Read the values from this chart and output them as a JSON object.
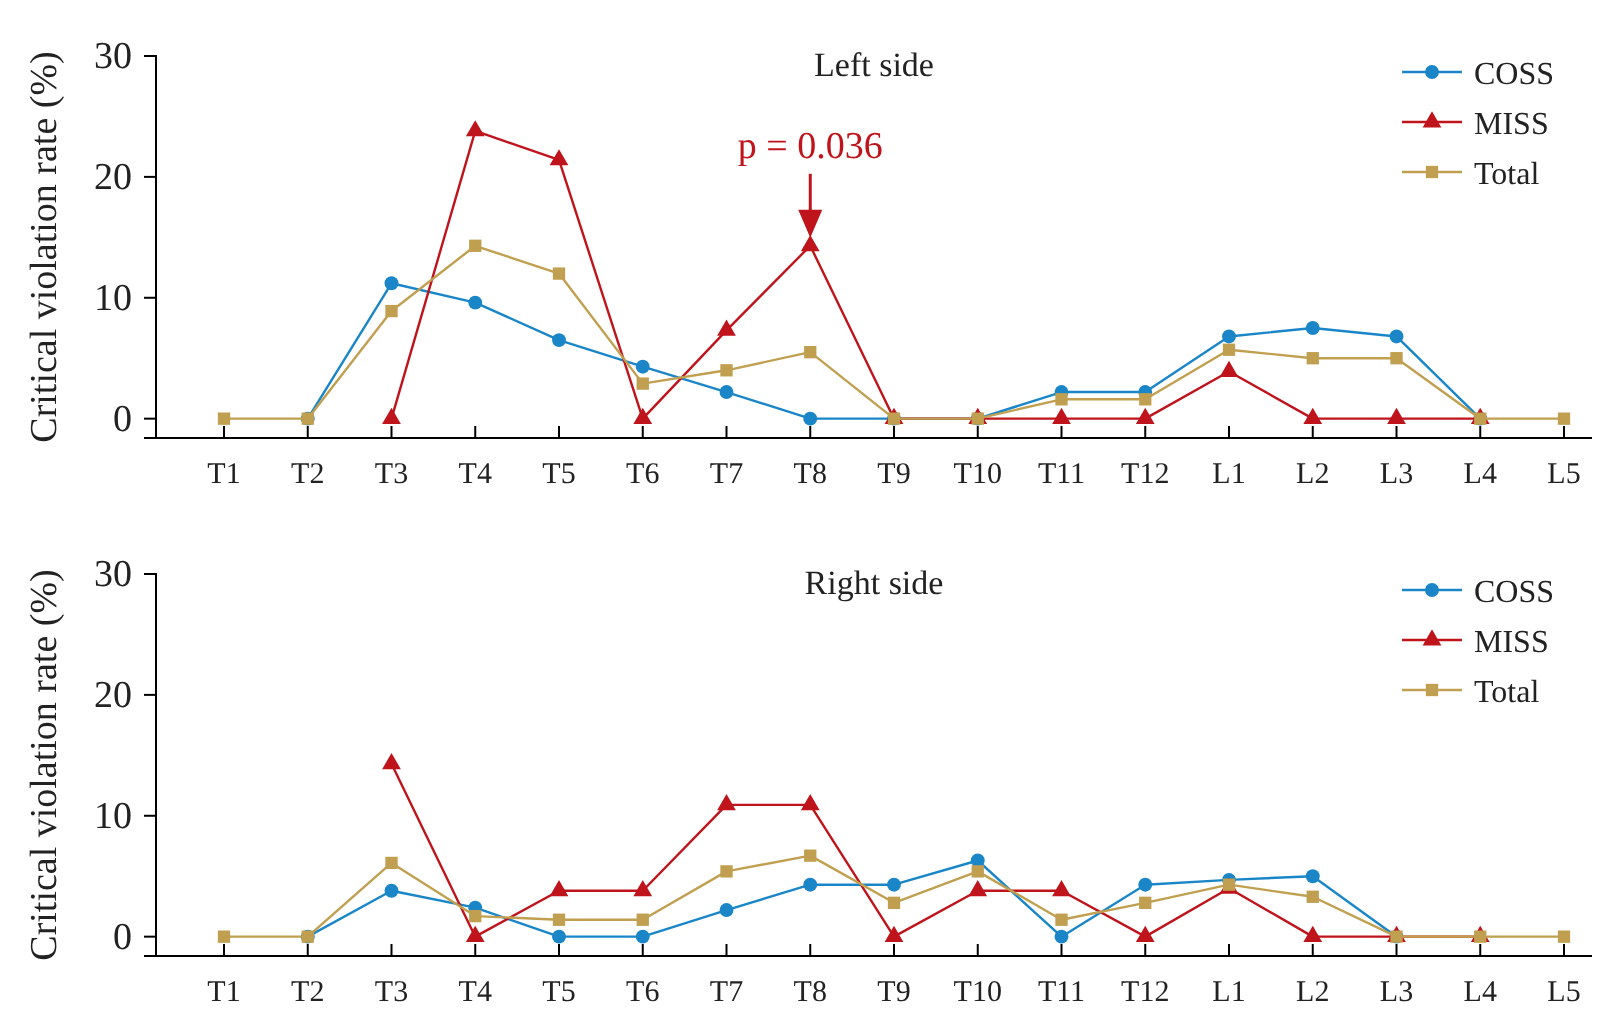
{
  "chart_data": [
    {
      "type": "line",
      "title": "Left side",
      "ylabel": "Critical violation rate (%)",
      "categories": [
        "T1",
        "T2",
        "T3",
        "T4",
        "T5",
        "T6",
        "T7",
        "T8",
        "T9",
        "T10",
        "T11",
        "T12",
        "L1",
        "L2",
        "L3",
        "L4",
        "L5"
      ],
      "ylim": [
        -1.6,
        30
      ],
      "yticks": [
        0,
        10,
        20,
        30
      ],
      "legend": "top right",
      "grid": false,
      "series": [
        {
          "name": "COSS",
          "color": "#1a86c8",
          "marker": "circle",
          "values": [
            null,
            0,
            11.2,
            9.6,
            6.5,
            4.3,
            2.2,
            0,
            0,
            0,
            2.2,
            2.2,
            6.8,
            7.5,
            6.8,
            0,
            null
          ]
        },
        {
          "name": "MISS",
          "color": "#c0141c",
          "marker": "triangle",
          "values": [
            null,
            null,
            0,
            23.8,
            21.4,
            0,
            7.3,
            14.3,
            0,
            0,
            0,
            0,
            3.9,
            0,
            0,
            0,
            null
          ]
        },
        {
          "name": "Total",
          "color": "#c0a050",
          "marker": "square",
          "values": [
            0,
            0,
            8.9,
            14.3,
            12.0,
            2.9,
            4.0,
            5.5,
            0,
            0,
            1.6,
            1.6,
            5.7,
            5.0,
            5.0,
            0,
            0
          ]
        }
      ],
      "annotations": [
        {
          "text": "p = 0.036",
          "x": "T8",
          "y": 14.3
        }
      ]
    },
    {
      "type": "line",
      "title": "Right side",
      "ylabel": "Critical violation rate (%)",
      "categories": [
        "T1",
        "T2",
        "T3",
        "T4",
        "T5",
        "T6",
        "T7",
        "T8",
        "T9",
        "T10",
        "T11",
        "T12",
        "L1",
        "L2",
        "L3",
        "L4",
        "L5"
      ],
      "ylim": [
        -1.6,
        30
      ],
      "yticks": [
        0,
        10,
        20,
        30
      ],
      "legend": "top right",
      "grid": false,
      "series": [
        {
          "name": "COSS",
          "color": "#1a86c8",
          "marker": "circle",
          "values": [
            null,
            0,
            3.8,
            2.4,
            0,
            0,
            2.2,
            4.3,
            4.3,
            6.3,
            0,
            4.3,
            4.7,
            5.0,
            0,
            null,
            null
          ]
        },
        {
          "name": "MISS",
          "color": "#c0141c",
          "marker": "triangle",
          "values": [
            null,
            null,
            14.3,
            0,
            3.8,
            3.8,
            10.9,
            10.9,
            0,
            3.8,
            3.8,
            0,
            4.0,
            0,
            0,
            0,
            null
          ]
        },
        {
          "name": "Total",
          "color": "#c0a050",
          "marker": "square",
          "values": [
            0,
            0,
            6.1,
            1.7,
            1.4,
            1.4,
            5.4,
            6.7,
            2.8,
            5.4,
            1.4,
            2.8,
            4.3,
            3.3,
            0,
            0,
            0
          ]
        }
      ]
    }
  ]
}
